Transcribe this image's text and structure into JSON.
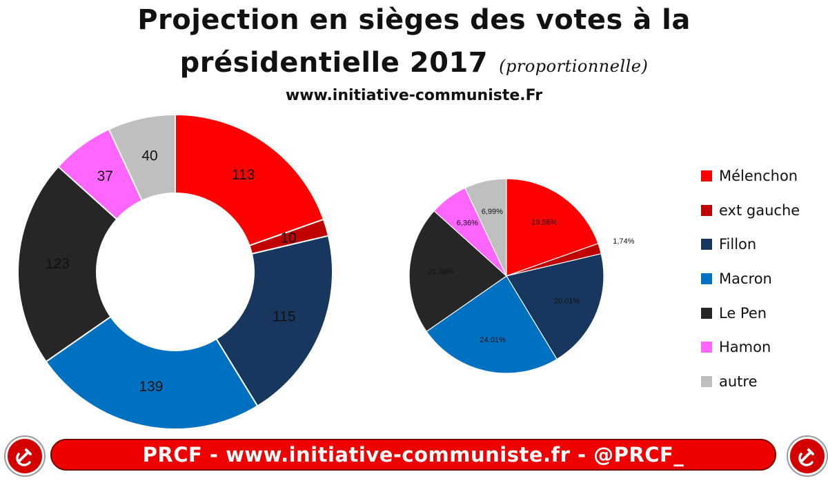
{
  "title": {
    "line1": "Projection en sièges des votes à la",
    "line2": "présidentielle 2017",
    "subtitle": "(proportionnelle)",
    "website": "www.initiative-communiste.Fr"
  },
  "colors": {
    "Mélenchon": "#ff0000",
    "ext gauche": "#c00000",
    "Fillon": "#17375e",
    "Macron": "#0070c0",
    "Le Pen": "#262626",
    "Hamon": "#ff66ff",
    "autre": "#bfbfbf"
  },
  "chart_data": [
    {
      "type": "donut",
      "categories": [
        "Mélenchon",
        "ext gauche",
        "Fillon",
        "Macron",
        "Le Pen",
        "Hamon",
        "autre"
      ],
      "values": [
        113,
        10,
        115,
        139,
        123,
        37,
        40
      ],
      "labels": [
        "113",
        "10",
        "115",
        "139",
        "123",
        "37",
        "40"
      ]
    },
    {
      "type": "pie",
      "categories": [
        "Mélenchon",
        "ext gauche",
        "Fillon",
        "Macron",
        "Le Pen",
        "Hamon",
        "autre"
      ],
      "values": [
        19.58,
        1.74,
        20.01,
        24.01,
        21.3,
        6.36,
        6.99
      ],
      "labels": [
        "19,58%",
        "1,74%",
        "20,01%",
        "24,01%",
        "21,30%",
        "6,36%",
        "6,99%"
      ]
    }
  ],
  "legend": {
    "position": "right",
    "items": [
      "Mélenchon",
      "ext gauche",
      "Fillon",
      "Macron",
      "Le Pen",
      "Hamon",
      "autre"
    ]
  },
  "banner": {
    "text": "PRCF - www.initiative-communiste.fr - @PRCF_"
  },
  "logos": [
    "hammer-sickle-icon",
    "hammer-sickle-icon"
  ]
}
